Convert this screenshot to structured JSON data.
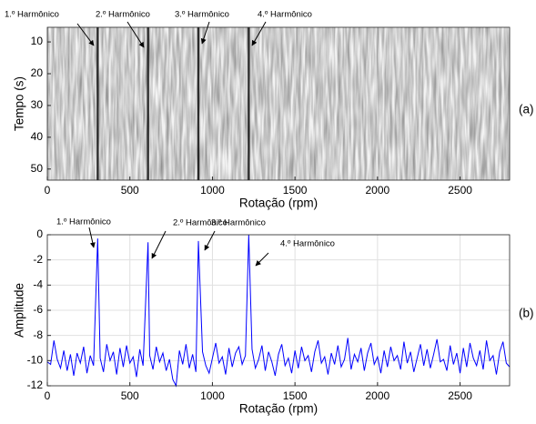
{
  "chart_data": [
    {
      "type": "spectrogram",
      "panel": "(a)",
      "xlabel": "Rotação (rpm)",
      "ylabel": "Tempo (s)",
      "xlim": [
        0,
        2800
      ],
      "xticks": [
        0,
        500,
        1000,
        1500,
        2000,
        2500
      ],
      "ylim": [
        53.5,
        5.4
      ],
      "yticks": [
        10,
        20,
        30,
        40,
        50
      ],
      "lines": [
        305,
        610,
        915,
        1220
      ],
      "line_color": "#111111",
      "annotations": [
        "1.º Harmônico",
        "2.º Harmônico",
        "3.º Harmônico",
        "4.º Harmônico"
      ]
    },
    {
      "type": "line",
      "panel": "(b)",
      "xlabel": "Rotação (rpm)",
      "ylabel": "Amplitude",
      "xlim": [
        0,
        2800
      ],
      "xticks": [
        0,
        500,
        1000,
        1500,
        2000,
        2500
      ],
      "ylim": [
        -12,
        0
      ],
      "yticks": [
        0,
        -2,
        -4,
        -6,
        -8,
        -10,
        -12
      ],
      "grid": true,
      "annotations": [
        "1.º Harmônico",
        "2.º Harmônico",
        "3.º Harmônico",
        "4.º Harmônico"
      ],
      "x": [
        0,
        20,
        40,
        60,
        80,
        100,
        120,
        140,
        160,
        180,
        200,
        220,
        240,
        260,
        280,
        305,
        320,
        340,
        360,
        380,
        400,
        420,
        440,
        460,
        480,
        500,
        520,
        540,
        560,
        580,
        610,
        620,
        640,
        660,
        680,
        700,
        720,
        740,
        760,
        780,
        800,
        820,
        840,
        860,
        880,
        900,
        915,
        940,
        960,
        980,
        1000,
        1020,
        1040,
        1060,
        1080,
        1100,
        1120,
        1140,
        1160,
        1180,
        1200,
        1220,
        1240,
        1260,
        1280,
        1300,
        1320,
        1340,
        1360,
        1380,
        1400,
        1420,
        1440,
        1460,
        1480,
        1500,
        1520,
        1540,
        1560,
        1580,
        1600,
        1620,
        1640,
        1660,
        1680,
        1700,
        1720,
        1740,
        1760,
        1780,
        1800,
        1820,
        1840,
        1860,
        1880,
        1900,
        1920,
        1940,
        1960,
        1980,
        2000,
        2020,
        2040,
        2060,
        2080,
        2100,
        2120,
        2140,
        2160,
        2180,
        2200,
        2220,
        2240,
        2260,
        2280,
        2300,
        2320,
        2340,
        2360,
        2380,
        2400,
        2420,
        2440,
        2460,
        2480,
        2500,
        2520,
        2540,
        2560,
        2580,
        2600,
        2620,
        2640,
        2660,
        2680,
        2700,
        2720,
        2740,
        2760,
        2780,
        2800
      ],
      "series": [
        {
          "name": "Amplitude",
          "color": "#0000ff",
          "values": [
            -10.1,
            -10.3,
            -8.4,
            -9.9,
            -10.6,
            -9.2,
            -10.8,
            -9.5,
            -11.2,
            -9.4,
            -10.2,
            -8.9,
            -11.0,
            -9.6,
            -10.4,
            -0.3,
            -9.8,
            -10.9,
            -8.7,
            -10.0,
            -9.3,
            -11.1,
            -9.0,
            -10.5,
            -8.8,
            -10.2,
            -9.7,
            -11.3,
            -9.1,
            -10.4,
            -0.6,
            -9.6,
            -10.7,
            -8.9,
            -10.1,
            -9.4,
            -10.8,
            -9.9,
            -11.5,
            -12.0,
            -9.2,
            -10.3,
            -8.7,
            -10.6,
            -9.5,
            -10.9,
            -0.5,
            -9.3,
            -10.4,
            -11.0,
            -9.8,
            -8.6,
            -10.2,
            -9.7,
            -11.1,
            -9.0,
            -10.5,
            -9.4,
            -8.9,
            -10.3,
            -9.6,
            0,
            -9.1,
            -10.6,
            -9.9,
            -8.8,
            -10.8,
            -9.3,
            -10.1,
            -11.2,
            -9.5,
            -8.7,
            -10.4,
            -9.8,
            -11.0,
            -9.2,
            -10.6,
            -8.9,
            -10.0,
            -9.6,
            -10.9,
            -9.3,
            -8.4,
            -10.2,
            -9.7,
            -11.1,
            -9.4,
            -10.3,
            -8.8,
            -10.5,
            -9.9,
            -8.2,
            -10.7,
            -9.5,
            -10.1,
            -9.0,
            -10.8,
            -9.4,
            -8.6,
            -10.3,
            -9.7,
            -11.0,
            -9.2,
            -10.5,
            -8.9,
            -10.0,
            -9.6,
            -10.7,
            -8.5,
            -10.2,
            -9.3,
            -10.9,
            -9.8,
            -8.7,
            -10.4,
            -9.1,
            -10.6,
            -9.5,
            -8.3,
            -10.1,
            -9.9,
            -10.8,
            -8.8,
            -10.3,
            -9.4,
            -11.0,
            -9.0,
            -10.5,
            -8.6,
            -9.8,
            -10.4,
            -9.2,
            -10.7,
            -8.4,
            -10.0,
            -9.6,
            -11.1,
            -9.3,
            -8.5,
            -10.2,
            -10.5
          ]
        }
      ]
    }
  ]
}
